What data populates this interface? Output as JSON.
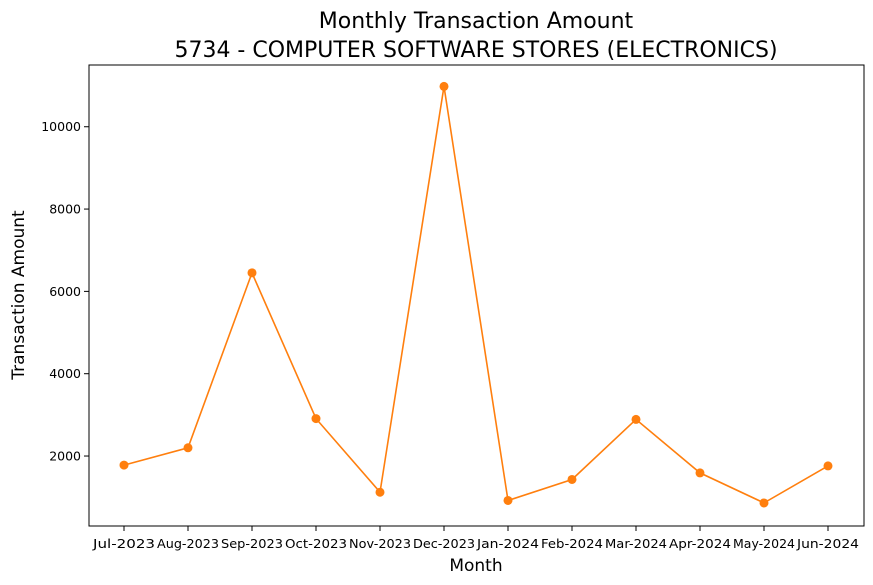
{
  "chart_data": {
    "type": "line",
    "title": "Monthly Transaction Amount",
    "subtitle": "5734 - COMPUTER SOFTWARE STORES (ELECTRONICS)",
    "xlabel": "Month",
    "ylabel": "Transaction Amount",
    "categories": [
      "Jul-2023",
      "Aug-2023",
      "Sep-2023",
      "Oct-2023",
      "Nov-2023",
      "Dec-2023",
      "Jan-2024",
      "Feb-2024",
      "Mar-2024",
      "Apr-2024",
      "May-2024",
      "Jun-2024"
    ],
    "series": [
      {
        "values": [
          1780,
          2200,
          6450,
          2910,
          1120,
          10980,
          920,
          1430,
          2890,
          1590,
          860,
          1760
        ],
        "color": "#ff7f0e"
      }
    ],
    "ylim": [
      300,
      11500
    ],
    "yticks": [
      2000,
      4000,
      6000,
      8000,
      10000
    ],
    "ytick_labels": [
      "2000",
      "4000",
      "6000",
      "8000",
      "10000"
    ],
    "grid": false,
    "legend": "none"
  }
}
